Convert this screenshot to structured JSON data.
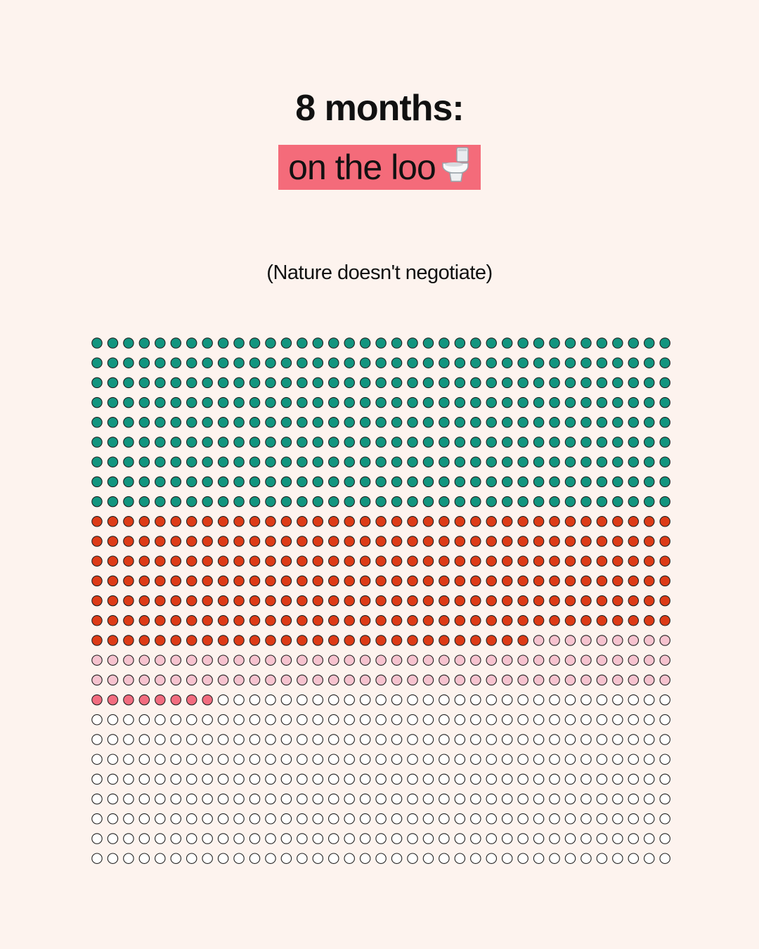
{
  "header": {
    "title": "8 months:",
    "highlight": "on the loo",
    "highlight_icon": "toilet-icon",
    "subtitle": "(Nature doesn't negotiate)"
  },
  "colors": {
    "background": "#fdf3ee",
    "highlight": "#f46b7a",
    "outline": "#222222"
  },
  "chart_data": {
    "type": "waffle",
    "title": "8 months:",
    "columns": 37,
    "rows": 27,
    "fill_order": "row-major",
    "segments": [
      {
        "count": 333,
        "color": "#12957f"
      },
      {
        "count": 250,
        "color": "#dd3b17"
      },
      {
        "count": 83,
        "color": "#f6c3cf"
      },
      {
        "count": 8,
        "color": "#f26d80"
      },
      {
        "count": 325,
        "color": "#ffffff"
      }
    ]
  }
}
